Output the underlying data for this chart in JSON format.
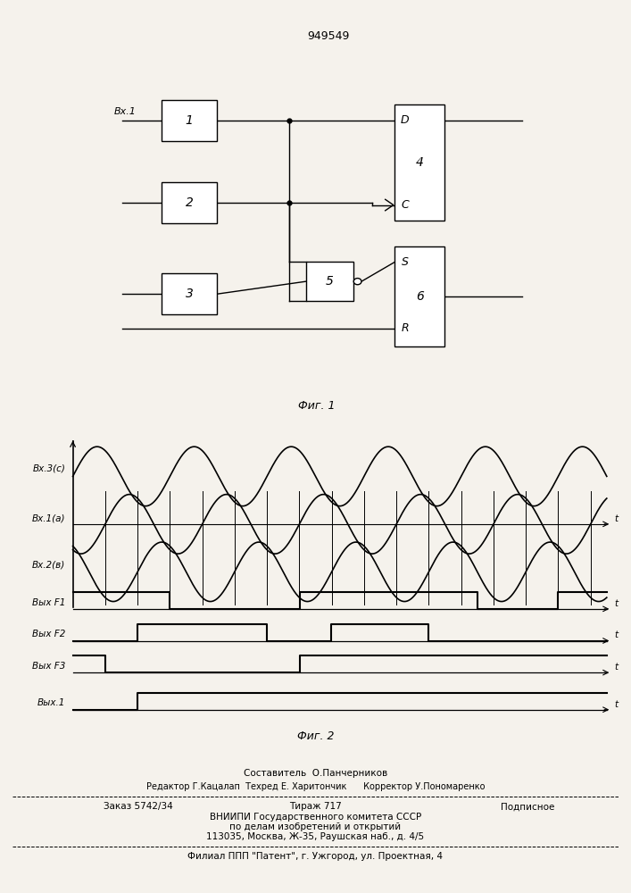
{
  "title": "949549",
  "fig1_caption": "Фиг. 1",
  "fig2_caption": "Фиг. 2",
  "bg_color": "#f5f2ec",
  "box_color": "#000000",
  "line_color": "#000000",
  "signal_labels_sine": [
    "Вх.3(с)",
    "Вх.1(а)",
    "Вх.2(в)"
  ],
  "signal_labels_dig": [
    "Вых F1",
    "Вых F2",
    "Вых F3",
    "Вых.1"
  ],
  "footer": {
    "line1": "Составитель  О.Панчерников",
    "line2": "Редактор Г.Кацалап  Техред Е. Харитончик      Корректор У.Пономаренко",
    "line3a": "Заказ 5742/34",
    "line3b": "Тираж 717",
    "line3c": "Подписное",
    "line4": "ВНИИПИ Государственного комитета СССР",
    "line5": "по делам изобретений и открытий",
    "line6": "113035, Москва, Ж-35, Раушская наб., д. 4/5",
    "line7": "Филиал ППП \"Патент\", г. Ужгород, ул. Проектная, 4"
  }
}
